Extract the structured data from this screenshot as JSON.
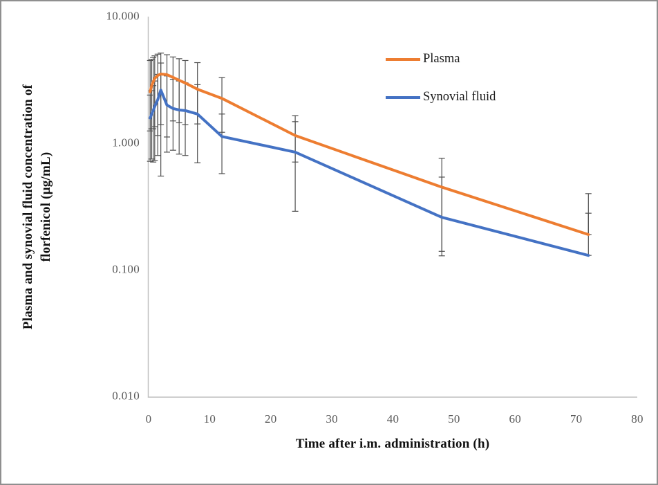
{
  "chart_data": {
    "type": "line",
    "title": "",
    "xlabel": "Time after i.m. administration (h)",
    "ylabel_lines": [
      "Plasma and synovial fluid concentration of",
      "florfenicol (µg/mL)"
    ],
    "y_scale": "log",
    "xlim": [
      0,
      80
    ],
    "ylim": [
      0.01,
      10
    ],
    "grid": false,
    "legend_position": "upper-right-inside",
    "x_ticks": [
      0,
      10,
      20,
      30,
      40,
      50,
      60,
      70,
      80
    ],
    "y_ticks": [
      {
        "value": 10,
        "label": "10.000"
      },
      {
        "value": 1,
        "label": "1.000"
      },
      {
        "value": 0.1,
        "label": "0.100"
      },
      {
        "value": 0.01,
        "label": "0.010"
      }
    ],
    "x": [
      0.25,
      0.5,
      0.75,
      1,
      1.5,
      2,
      3,
      4,
      5,
      6,
      8,
      12,
      24,
      48,
      72
    ],
    "series": [
      {
        "name": "Plasma",
        "color": "#ED7D31",
        "values": [
          2.55,
          2.85,
          3.05,
          3.25,
          3.43,
          3.52,
          3.48,
          3.31,
          3.14,
          2.99,
          2.67,
          2.26,
          1.15,
          0.45,
          0.19
        ],
        "error_upper": [
          4.5,
          4.6,
          4.75,
          4.9,
          5.05,
          5.15,
          5.0,
          4.8,
          4.65,
          4.5,
          4.33,
          3.3,
          1.65,
          0.76,
          0.4
        ],
        "error_lower": [
          1.25,
          1.3,
          1.3,
          1.35,
          1.15,
          1.4,
          1.12,
          1.5,
          1.45,
          1.4,
          1.42,
          1.22,
          0.71,
          0.14,
          0.19
        ]
      },
      {
        "name": "Synovial fluid",
        "color": "#4472C4",
        "values": [
          1.58,
          1.7,
          1.81,
          1.95,
          2.21,
          2.63,
          2.0,
          1.88,
          1.83,
          1.81,
          1.7,
          1.13,
          0.85,
          0.26,
          0.13
        ],
        "error_upper": [
          2.4,
          2.6,
          2.85,
          3.1,
          3.5,
          4.3,
          3.4,
          3.2,
          3.1,
          3.0,
          2.9,
          1.7,
          1.48,
          0.54,
          0.28
        ],
        "error_lower": [
          0.72,
          0.75,
          0.71,
          0.73,
          0.8,
          0.55,
          0.85,
          0.88,
          0.82,
          0.8,
          0.7,
          0.575,
          0.29,
          0.129,
          0.13
        ]
      }
    ],
    "colors": {
      "axis_line": "#BFBFBF",
      "tick_text": "#595959",
      "error_bar": "#4F4F4F",
      "title_text": "#111111"
    }
  }
}
